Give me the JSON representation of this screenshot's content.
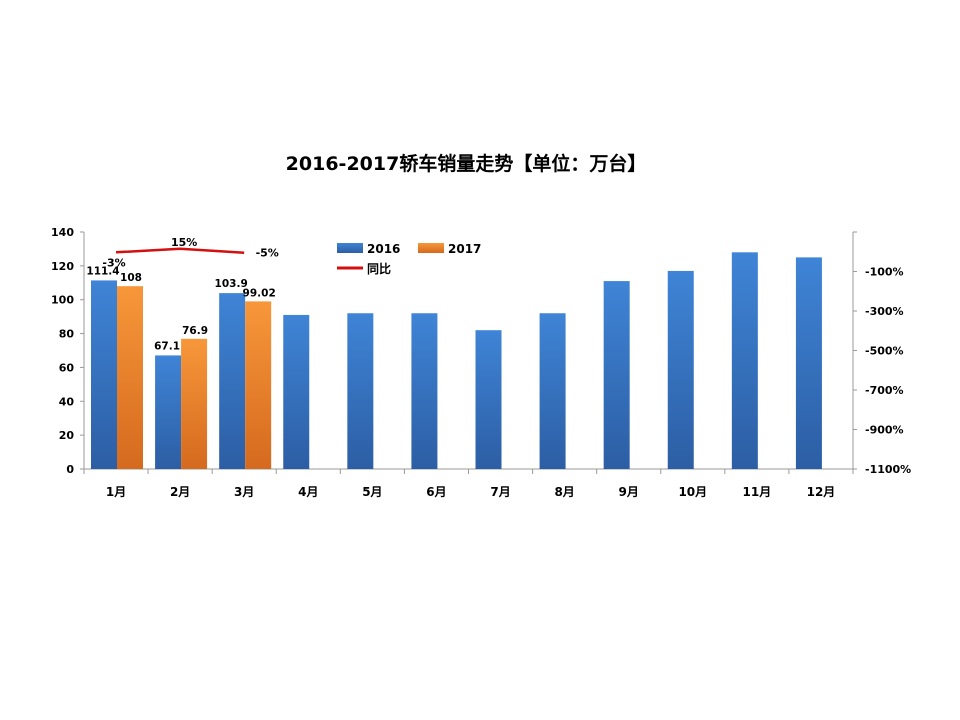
{
  "chart_data": {
    "type": "bar",
    "title": "2016-2017轿车销量走势【单位：万台】",
    "categories": [
      "1月",
      "2月",
      "3月",
      "4月",
      "5月",
      "6月",
      "7月",
      "8月",
      "9月",
      "10月",
      "11月",
      "12月"
    ],
    "series": [
      {
        "name": "2016",
        "type": "bar",
        "axis": "left",
        "color": "#3a78c9",
        "values": [
          111.4,
          67.1,
          103.9,
          91,
          92,
          92,
          82,
          92,
          111,
          117,
          128,
          125
        ],
        "labels": [
          "111.4",
          "67.1",
          "103.9",
          null,
          null,
          null,
          null,
          null,
          null,
          null,
          null,
          null
        ]
      },
      {
        "name": "2017",
        "type": "bar",
        "axis": "left",
        "color": "#ef8a2c",
        "values": [
          108,
          76.9,
          99.02,
          null,
          null,
          null,
          null,
          null,
          null,
          null,
          null,
          null
        ],
        "labels": [
          "108",
          "76.9",
          "99.02",
          null,
          null,
          null,
          null,
          null,
          null,
          null,
          null,
          null
        ]
      },
      {
        "name": "同比",
        "type": "line",
        "axis": "right",
        "color": "#d40f0f",
        "values": [
          -3,
          15,
          -5,
          null,
          null,
          null,
          null,
          null,
          null,
          null,
          null,
          null
        ],
        "labels": [
          "-3%",
          "15%",
          "-5%",
          null,
          null,
          null,
          null,
          null,
          null,
          null,
          null,
          null
        ]
      }
    ],
    "y_left": {
      "ylim": [
        0,
        140
      ],
      "ticks": [
        "0",
        "20",
        "40",
        "60",
        "80",
        "100",
        "120",
        "140"
      ]
    },
    "y_right": {
      "ylim": [
        -1100,
        100
      ],
      "ticks": [
        "-100%",
        "-300%",
        "-500%",
        "-700%",
        "-900%",
        "-1100%"
      ],
      "tick_values": [
        -100,
        -300,
        -500,
        -700,
        -900,
        -1100
      ]
    },
    "grid": false,
    "legend": "top-center"
  }
}
